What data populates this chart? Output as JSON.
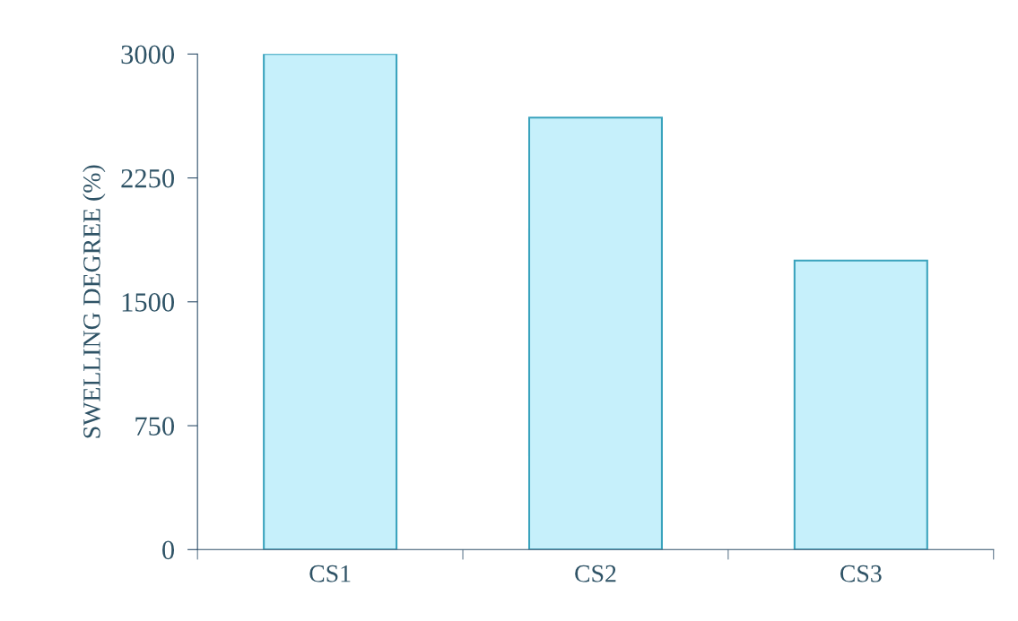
{
  "chart_data": {
    "type": "bar",
    "ylabel": "SWELLING DEGREE (%)",
    "categories": [
      "CS1",
      "CS2",
      "CS3"
    ],
    "values": [
      3000,
      2615,
      1750
    ],
    "color": "#c6f0fb",
    "ylim": [
      0,
      3000
    ],
    "yticks": [
      0,
      750,
      1500,
      2250,
      3000
    ],
    "grid": false
  }
}
